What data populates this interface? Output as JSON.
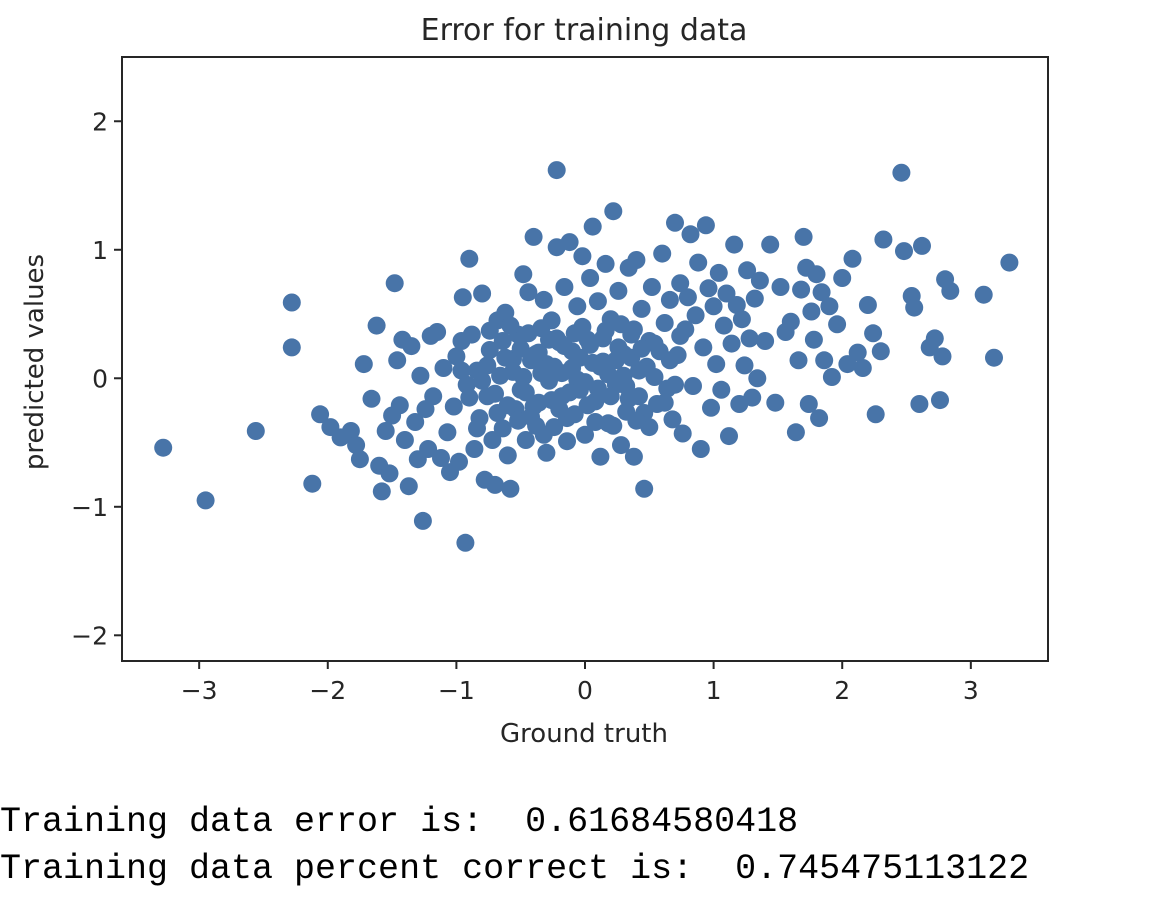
{
  "chart_data": {
    "type": "scatter",
    "title": "Error for training data",
    "xlabel": "Ground truth",
    "ylabel": "predicted values",
    "xlim": [
      -3.6,
      3.6
    ],
    "ylim": [
      -2.2,
      2.5
    ],
    "xticks": [
      -3,
      -2,
      -1,
      0,
      1,
      2,
      3
    ],
    "yticks": [
      -2,
      -1,
      0,
      1,
      2
    ],
    "xtick_labels": [
      "−3",
      "−2",
      "−1",
      "0",
      "1",
      "2",
      "3"
    ],
    "ytick_labels": [
      "−2",
      "−1",
      "0",
      "1",
      "2"
    ],
    "grid": false,
    "marker_color": "#4874a8",
    "points": [
      [
        -3.28,
        -0.54
      ],
      [
        -2.95,
        -0.95
      ],
      [
        -2.56,
        -0.41
      ],
      [
        -2.28,
        0.59
      ],
      [
        -2.28,
        0.24
      ],
      [
        -2.12,
        -0.82
      ],
      [
        -2.06,
        -0.28
      ],
      [
        -1.98,
        -0.38
      ],
      [
        -1.9,
        -0.46
      ],
      [
        -1.82,
        -0.41
      ],
      [
        -1.78,
        -0.52
      ],
      [
        -1.75,
        -0.63
      ],
      [
        -1.72,
        0.11
      ],
      [
        -1.66,
        -0.16
      ],
      [
        -1.62,
        0.41
      ],
      [
        -1.6,
        -0.68
      ],
      [
        -1.58,
        -0.88
      ],
      [
        -1.55,
        -0.41
      ],
      [
        -1.52,
        -0.74
      ],
      [
        -1.5,
        -0.29
      ],
      [
        -1.48,
        0.74
      ],
      [
        -1.46,
        0.14
      ],
      [
        -1.44,
        -0.21
      ],
      [
        -1.42,
        0.3
      ],
      [
        -1.4,
        -0.48
      ],
      [
        -1.37,
        -0.84
      ],
      [
        -1.35,
        0.25
      ],
      [
        -1.32,
        -0.34
      ],
      [
        -1.3,
        -0.63
      ],
      [
        -1.28,
        0.02
      ],
      [
        -1.26,
        -1.11
      ],
      [
        -1.24,
        -0.24
      ],
      [
        -1.22,
        -0.55
      ],
      [
        -1.2,
        0.33
      ],
      [
        -1.18,
        -0.14
      ],
      [
        -1.15,
        0.36
      ],
      [
        -1.12,
        -0.62
      ],
      [
        -1.1,
        0.08
      ],
      [
        -1.07,
        -0.42
      ],
      [
        -1.05,
        -0.73
      ],
      [
        -1.02,
        -0.22
      ],
      [
        -1.0,
        0.17
      ],
      [
        -0.98,
        -0.65
      ],
      [
        -0.96,
        0.29
      ],
      [
        -0.95,
        0.63
      ],
      [
        -0.93,
        -1.28
      ],
      [
        -0.92,
        -0.05
      ],
      [
        -0.9,
        0.93
      ],
      [
        -0.88,
        0.34
      ],
      [
        -0.86,
        -0.55
      ],
      [
        -0.84,
        0.06
      ],
      [
        -0.82,
        -0.31
      ],
      [
        -0.8,
        0.66
      ],
      [
        -0.78,
        -0.79
      ],
      [
        -0.76,
        -0.14
      ],
      [
        -0.74,
        0.22
      ],
      [
        -0.72,
        -0.48
      ],
      [
        -0.7,
        -0.83
      ],
      [
        -0.68,
        0.45
      ],
      [
        -0.66,
        0.02
      ],
      [
        -0.64,
        -0.39
      ],
      [
        -0.62,
        0.51
      ],
      [
        -0.6,
        -0.6
      ],
      [
        -0.58,
        -0.86
      ],
      [
        -0.56,
        0.15
      ],
      [
        -0.54,
        -0.24
      ],
      [
        -0.52,
        0.34
      ],
      [
        -0.5,
        -0.09
      ],
      [
        -0.48,
        0.81
      ],
      [
        -0.46,
        -0.48
      ],
      [
        -0.44,
        0.67
      ],
      [
        -0.42,
        -0.3
      ],
      [
        -0.4,
        1.1
      ],
      [
        -0.38,
        0.19
      ],
      [
        -0.36,
        -0.19
      ],
      [
        -0.34,
        0.04
      ],
      [
        -0.32,
        0.61
      ],
      [
        -0.3,
        -0.58
      ],
      [
        -0.28,
        -0.02
      ],
      [
        -0.26,
        0.45
      ],
      [
        -0.24,
        -0.38
      ],
      [
        -0.22,
        1.62
      ],
      [
        -0.22,
        1.02
      ],
      [
        -0.2,
        0.28
      ],
      [
        -0.18,
        -0.14
      ],
      [
        -0.16,
        0.71
      ],
      [
        -0.14,
        -0.49
      ],
      [
        -0.12,
        1.06
      ],
      [
        -0.1,
        0.08
      ],
      [
        -0.08,
        -0.28
      ],
      [
        -0.06,
        0.56
      ],
      [
        -0.04,
        -0.09
      ],
      [
        -0.02,
        0.95
      ],
      [
        0.0,
        -0.44
      ],
      [
        0.02,
        0.3
      ],
      [
        0.04,
        0.78
      ],
      [
        0.06,
        1.18
      ],
      [
        0.08,
        -0.18
      ],
      [
        0.1,
        0.6
      ],
      [
        0.12,
        -0.61
      ],
      [
        0.14,
        0.13
      ],
      [
        0.16,
        0.89
      ],
      [
        0.18,
        -0.35
      ],
      [
        0.2,
        0.46
      ],
      [
        0.22,
        1.3
      ],
      [
        0.24,
        -0.05
      ],
      [
        0.26,
        0.68
      ],
      [
        0.28,
        -0.52
      ],
      [
        0.3,
        0.19
      ],
      [
        0.32,
        -0.26
      ],
      [
        0.34,
        0.86
      ],
      [
        0.36,
        0.34
      ],
      [
        0.38,
        -0.61
      ],
      [
        0.4,
        0.92
      ],
      [
        0.42,
        -0.14
      ],
      [
        0.44,
        0.54
      ],
      [
        0.46,
        -0.86
      ],
      [
        0.48,
        0.09
      ],
      [
        0.5,
        -0.38
      ],
      [
        0.52,
        0.71
      ],
      [
        0.54,
        0.27
      ],
      [
        0.56,
        -0.2
      ],
      [
        0.6,
        0.97
      ],
      [
        0.62,
        0.43
      ],
      [
        0.64,
        -0.08
      ],
      [
        0.66,
        0.61
      ],
      [
        0.68,
        -0.32
      ],
      [
        0.7,
        1.21
      ],
      [
        0.72,
        0.18
      ],
      [
        0.74,
        0.74
      ],
      [
        0.76,
        -0.43
      ],
      [
        0.78,
        0.38
      ],
      [
        0.8,
        0.63
      ],
      [
        0.82,
        1.12
      ],
      [
        0.84,
        -0.06
      ],
      [
        0.86,
        0.49
      ],
      [
        0.88,
        0.9
      ],
      [
        0.9,
        -0.55
      ],
      [
        0.92,
        0.24
      ],
      [
        0.94,
        1.19
      ],
      [
        0.96,
        0.7
      ],
      [
        0.98,
        -0.23
      ],
      [
        1.0,
        0.56
      ],
      [
        1.02,
        0.11
      ],
      [
        1.04,
        0.82
      ],
      [
        1.06,
        -0.09
      ],
      [
        1.08,
        0.41
      ],
      [
        1.1,
        0.66
      ],
      [
        1.12,
        -0.45
      ],
      [
        1.14,
        0.27
      ],
      [
        1.16,
        1.04
      ],
      [
        1.18,
        0.57
      ],
      [
        1.2,
        -0.2
      ],
      [
        1.22,
        0.46
      ],
      [
        1.24,
        0.1
      ],
      [
        1.26,
        0.84
      ],
      [
        1.28,
        0.31
      ],
      [
        1.3,
        -0.15
      ],
      [
        1.32,
        0.62
      ],
      [
        1.34,
        0.0
      ],
      [
        1.36,
        0.76
      ],
      [
        1.4,
        0.29
      ],
      [
        1.44,
        1.04
      ],
      [
        1.48,
        -0.19
      ],
      [
        1.52,
        0.71
      ],
      [
        1.56,
        0.36
      ],
      [
        1.6,
        0.44
      ],
      [
        1.64,
        -0.42
      ],
      [
        1.66,
        0.14
      ],
      [
        1.68,
        0.69
      ],
      [
        1.7,
        1.1
      ],
      [
        1.72,
        0.86
      ],
      [
        1.74,
        -0.2
      ],
      [
        1.76,
        0.52
      ],
      [
        1.78,
        0.3
      ],
      [
        1.8,
        0.81
      ],
      [
        1.82,
        -0.31
      ],
      [
        1.84,
        0.67
      ],
      [
        1.86,
        0.14
      ],
      [
        1.9,
        0.56
      ],
      [
        1.92,
        0.01
      ],
      [
        1.96,
        0.42
      ],
      [
        2.0,
        0.78
      ],
      [
        2.04,
        0.11
      ],
      [
        2.08,
        0.93
      ],
      [
        2.12,
        0.2
      ],
      [
        2.16,
        0.08
      ],
      [
        2.2,
        0.57
      ],
      [
        2.24,
        0.35
      ],
      [
        2.26,
        -0.28
      ],
      [
        2.3,
        0.21
      ],
      [
        2.32,
        1.08
      ],
      [
        2.46,
        1.6
      ],
      [
        2.48,
        0.99
      ],
      [
        2.54,
        0.64
      ],
      [
        2.56,
        0.55
      ],
      [
        2.6,
        -0.2
      ],
      [
        2.62,
        1.03
      ],
      [
        2.68,
        0.24
      ],
      [
        2.72,
        0.31
      ],
      [
        2.76,
        -0.17
      ],
      [
        2.78,
        0.17
      ],
      [
        2.8,
        0.77
      ],
      [
        2.84,
        0.68
      ],
      [
        3.1,
        0.65
      ],
      [
        3.18,
        0.16
      ],
      [
        3.3,
        0.9
      ],
      [
        -0.96,
        0.06
      ],
      [
        -0.9,
        -0.15
      ],
      [
        -0.84,
        -0.39
      ],
      [
        -0.76,
        0.1
      ],
      [
        -0.7,
        -0.12
      ],
      [
        -0.64,
        0.29
      ],
      [
        -0.6,
        -0.21
      ],
      [
        -0.56,
        0.05
      ],
      [
        -0.5,
        0.23
      ],
      [
        -0.46,
        -0.11
      ],
      [
        -0.42,
        0.14
      ],
      [
        -0.38,
        -0.37
      ],
      [
        -0.34,
        0.39
      ],
      [
        -0.3,
        0.11
      ],
      [
        -0.26,
        -0.17
      ],
      [
        -0.22,
        0.31
      ],
      [
        -0.18,
        0.04
      ],
      [
        -0.14,
        -0.31
      ],
      [
        -0.1,
        0.21
      ],
      [
        -0.06,
        -0.01
      ],
      [
        -0.02,
        0.4
      ],
      [
        0.02,
        -0.21
      ],
      [
        0.06,
        0.12
      ],
      [
        0.1,
        -0.08
      ],
      [
        0.14,
        0.31
      ],
      [
        0.18,
        0.03
      ],
      [
        0.22,
        -0.37
      ],
      [
        0.26,
        0.24
      ],
      [
        0.3,
        0.02
      ],
      [
        0.34,
        -0.16
      ],
      [
        0.38,
        0.38
      ],
      [
        0.42,
        0.06
      ],
      [
        0.46,
        -0.27
      ],
      [
        0.5,
        0.29
      ],
      [
        0.54,
        0.01
      ],
      [
        0.58,
        0.21
      ],
      [
        0.62,
        -0.19
      ],
      [
        0.66,
        0.14
      ],
      [
        0.7,
        -0.05
      ],
      [
        0.74,
        0.33
      ],
      [
        -0.8,
        -0.02
      ],
      [
        -0.74,
        0.37
      ],
      [
        -0.68,
        -0.27
      ],
      [
        -0.62,
        0.16
      ],
      [
        -0.58,
        0.41
      ],
      [
        -0.52,
        -0.33
      ],
      [
        -0.48,
        0.01
      ],
      [
        -0.44,
        0.35
      ],
      [
        -0.4,
        -0.22
      ],
      [
        -0.36,
        0.2
      ],
      [
        -0.32,
        -0.44
      ],
      [
        -0.28,
        0.3
      ],
      [
        -0.24,
        0.09
      ],
      [
        -0.2,
        -0.24
      ],
      [
        -0.16,
        0.25
      ],
      [
        -0.12,
        -0.11
      ],
      [
        -0.08,
        0.35
      ],
      [
        -0.04,
        0.16
      ],
      [
        0.0,
        -0.03
      ],
      [
        0.04,
        0.26
      ],
      [
        0.08,
        -0.34
      ],
      [
        0.12,
        0.09
      ],
      [
        0.16,
        0.37
      ],
      [
        0.2,
        -0.14
      ],
      [
        0.24,
        0.14
      ],
      [
        0.28,
        0.42
      ],
      [
        0.32,
        -0.06
      ],
      [
        0.36,
        0.16
      ],
      [
        0.4,
        -0.33
      ],
      [
        0.44,
        0.23
      ]
    ]
  },
  "output": {
    "line1": "Training data error is:  0.61684580418",
    "line2": "Training data percent correct is:  0.745475113122"
  }
}
